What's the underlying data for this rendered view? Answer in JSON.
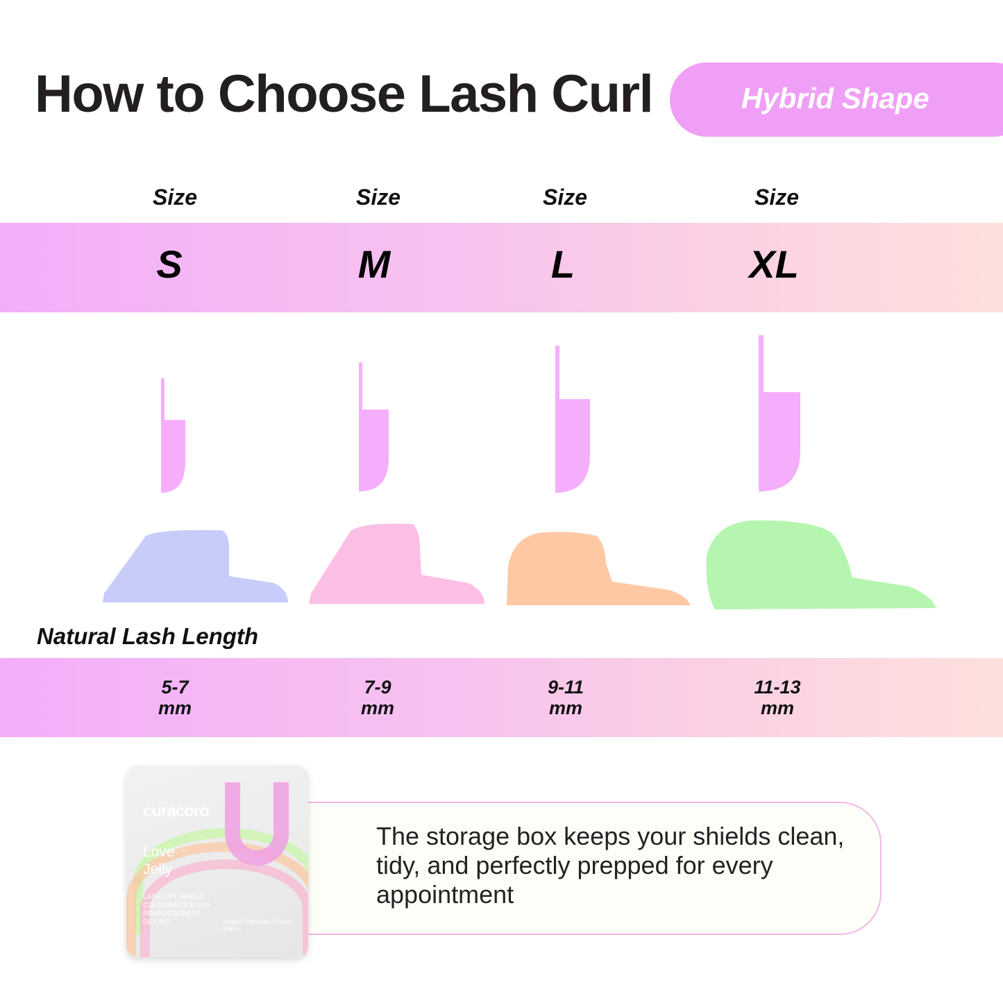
{
  "header": {
    "title": "How to Choose Lash Curl",
    "badge": "Hybrid Shape"
  },
  "colors": {
    "badge": "#ef9ff5",
    "curl_shape": "#f5aefc",
    "band_start": "#f3aefa",
    "band_end": "#fde0dc",
    "shield_s": "#c8ccfa",
    "shield_m": "#fbbfe6",
    "shield_l": "#fdc9a5",
    "shield_xl": "#b5f5b0"
  },
  "sizes": [
    {
      "label": "Size",
      "size": "S",
      "length": "5-7",
      "unit": "mm"
    },
    {
      "label": "Size",
      "size": "M",
      "length": "7-9",
      "unit": "mm"
    },
    {
      "label": "Size",
      "size": "L",
      "length": "9-11",
      "unit": "mm"
    },
    {
      "label": "Size",
      "size": "XL",
      "length": "11-13",
      "unit": "mm"
    }
  ],
  "length_heading": "Natural Lash Length",
  "product_box": {
    "brand": "curacoro",
    "name_line1": "Love",
    "name_line2": "Jelly",
    "sub1": "LASH LIFT SHIELD",
    "sub2": "COUSSINETS POUR",
    "sub3": "REHAUSSEMENT",
    "sub4": "DE CILS",
    "type": "Hybrid / Hybride",
    "count": "4 Pairs / Paires"
  },
  "callout": "The storage box keeps your shields clean, tidy, and perfectly prepped for every appointment"
}
